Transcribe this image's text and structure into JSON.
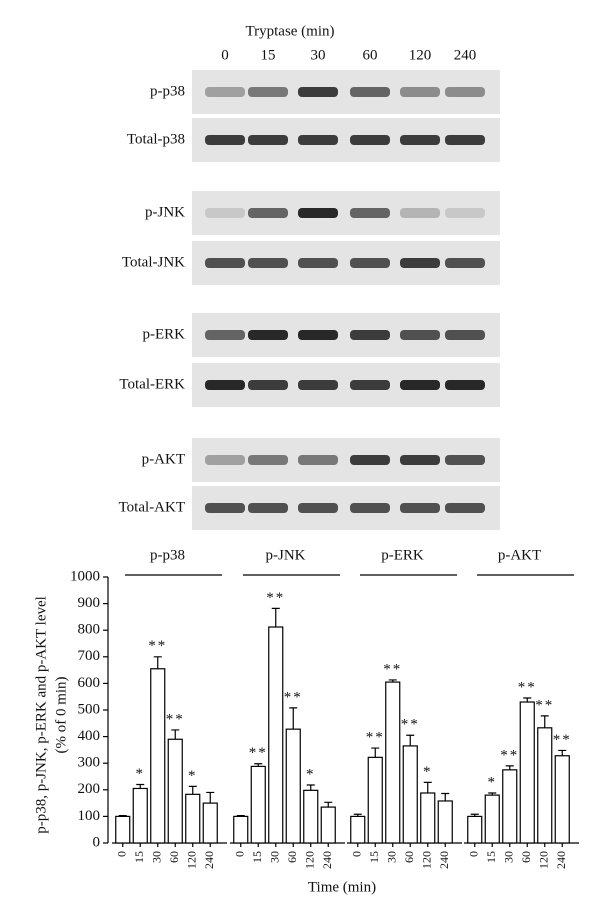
{
  "blots": {
    "title": "Tryptase (min)",
    "lanes": [
      "0",
      "15",
      "30",
      "60",
      "120",
      "240"
    ],
    "rows": [
      "p-p38",
      "Total-p38",
      "p-JNK",
      "Total-JNK",
      "p-ERK",
      "Total-ERK",
      "p-AKT",
      "Total-AKT"
    ]
  },
  "chart_data": {
    "type": "bar",
    "ylabel": "p-p38, p-JNK, p-ERK and p-AKT level",
    "ylabel2": "(% of 0 min)",
    "xlabel": "Time (min)",
    "categories": [
      "0",
      "15",
      "30",
      "60",
      "120",
      "240"
    ],
    "groups": [
      {
        "name": "p-p38",
        "values": [
          100,
          205,
          655,
          390,
          183,
          150
        ],
        "errors": [
          3,
          15,
          45,
          35,
          30,
          40
        ],
        "annotations": [
          null,
          "*",
          "**",
          "**",
          "*",
          null
        ]
      },
      {
        "name": "p-JNK",
        "values": [
          100,
          288,
          812,
          428,
          198,
          135
        ],
        "errors": [
          3,
          10,
          70,
          80,
          20,
          18
        ],
        "annotations": [
          null,
          "**",
          "**",
          "**",
          "*",
          null
        ]
      },
      {
        "name": "p-ERK",
        "values": [
          100,
          322,
          605,
          365,
          188,
          158
        ],
        "errors": [
          8,
          35,
          8,
          40,
          40,
          28
        ],
        "annotations": [
          null,
          "**",
          "**",
          "**",
          "*",
          null
        ]
      },
      {
        "name": "p-AKT",
        "values": [
          100,
          180,
          275,
          530,
          433,
          328
        ],
        "errors": [
          8,
          8,
          15,
          15,
          45,
          20
        ],
        "annotations": [
          null,
          "*",
          "**",
          "**",
          "**",
          "**"
        ]
      }
    ],
    "color": "#ffffff",
    "ylim": [
      0,
      1000
    ],
    "yticks": [
      0,
      100,
      200,
      300,
      400,
      500,
      600,
      700,
      800,
      900,
      1000
    ]
  }
}
